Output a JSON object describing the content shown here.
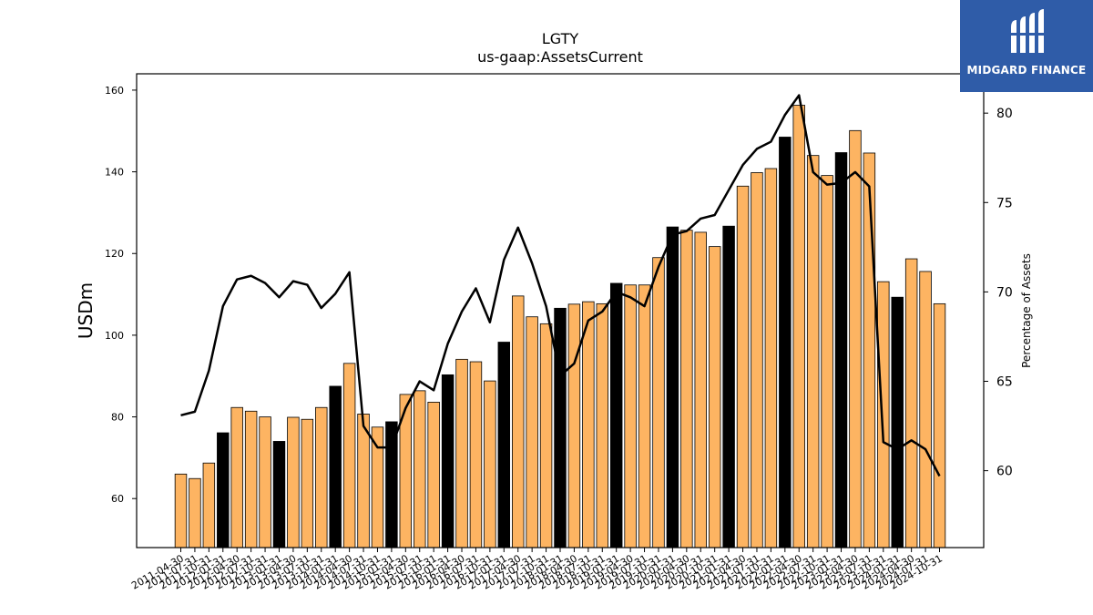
{
  "chart_data": {
    "type": "bar",
    "title": "LGTY",
    "subtitle": "us-gaap:AssetsCurrent",
    "ylabel": "USDm",
    "y2label": "Percentage of Assets",
    "ylim": [
      48,
      164
    ],
    "y2lim": [
      55.7,
      82.2
    ],
    "yticks": [
      60,
      80,
      100,
      120,
      140,
      160
    ],
    "y2ticks": [
      60,
      65,
      70,
      75,
      80
    ],
    "grid": false,
    "colors": {
      "bar": "#fdb462",
      "bar_highlight": "#000000",
      "line": "#000000"
    },
    "categories": [
      "2011-04-30",
      "2011-07-31",
      "2011-10-31",
      "2012-01-31",
      "2012-04-30",
      "2012-07-31",
      "2012-10-31",
      "2013-01-31",
      "2013-04-30",
      "2013-07-31",
      "2013-10-31",
      "2014-01-31",
      "2014-04-30",
      "2014-07-31",
      "2014-10-31",
      "2015-01-31",
      "2015-04-30",
      "2015-07-31",
      "2015-10-31",
      "2016-01-31",
      "2016-04-30",
      "2016-07-31",
      "2016-10-31",
      "2017-01-31",
      "2017-04-30",
      "2017-07-31",
      "2017-10-31",
      "2018-01-31",
      "2018-04-30",
      "2018-07-31",
      "2018-10-31",
      "2019-01-31",
      "2019-04-30",
      "2019-07-31",
      "2019-10-31",
      "2020-01-31",
      "2020-04-30",
      "2020-07-31",
      "2020-10-31",
      "2021-01-31",
      "2021-04-30",
      "2021-07-31",
      "2021-10-31",
      "2022-01-31",
      "2022-04-30",
      "2022-07-31",
      "2022-10-31",
      "2023-01-31",
      "2023-04-30",
      "2023-07-31",
      "2023-10-31",
      "2024-01-31",
      "2024-04-30",
      "2024-07-31",
      "2024-10-31"
    ],
    "series": [
      {
        "type": "bar",
        "values": [
          66.0,
          64.9,
          68.7,
          76.1,
          82.3,
          81.4,
          80.0,
          74.0,
          79.9,
          79.4,
          82.3,
          87.5,
          93.1,
          80.7,
          77.5,
          78.8,
          85.5,
          86.4,
          83.6,
          90.3,
          94.1,
          93.5,
          88.8,
          98.3,
          109.6,
          104.5,
          102.8,
          106.6,
          107.6,
          108.2,
          107.7,
          112.7,
          112.3,
          112.3,
          119.0,
          126.5,
          125.7,
          125.2,
          121.7,
          126.7,
          136.5,
          139.8,
          140.8,
          148.5,
          156.3,
          144.0,
          139.1,
          144.7,
          150.1,
          144.6,
          113.1,
          109.3,
          118.7,
          115.6,
          107.7
        ],
        "highlight": [
          false,
          false,
          false,
          true,
          false,
          false,
          false,
          true,
          false,
          false,
          false,
          true,
          false,
          false,
          false,
          true,
          false,
          false,
          false,
          true,
          false,
          false,
          false,
          true,
          false,
          false,
          false,
          true,
          false,
          false,
          false,
          true,
          false,
          false,
          false,
          true,
          false,
          false,
          false,
          true,
          false,
          false,
          false,
          true,
          false,
          false,
          false,
          true,
          false,
          false,
          false,
          true,
          false,
          false,
          false
        ]
      },
      {
        "type": "line",
        "axis": "right",
        "values": [
          63.1,
          63.3,
          65.6,
          69.2,
          70.7,
          70.9,
          70.5,
          69.7,
          70.6,
          70.4,
          69.1,
          69.9,
          71.1,
          62.5,
          61.3,
          61.3,
          63.5,
          65.0,
          64.5,
          67.1,
          68.9,
          70.2,
          68.3,
          71.8,
          73.6,
          71.6,
          69.2,
          65.3,
          66.0,
          68.4,
          68.9,
          70.0,
          69.7,
          69.2,
          71.4,
          73.2,
          73.4,
          74.1,
          74.3,
          75.7,
          77.1,
          78.0,
          78.4,
          79.9,
          81.0,
          76.7,
          76.0,
          76.1,
          76.7,
          75.9,
          61.6,
          61.2,
          61.7,
          61.2,
          59.7
        ]
      }
    ]
  },
  "logo": {
    "text": "MIDGARD FINANCE"
  }
}
